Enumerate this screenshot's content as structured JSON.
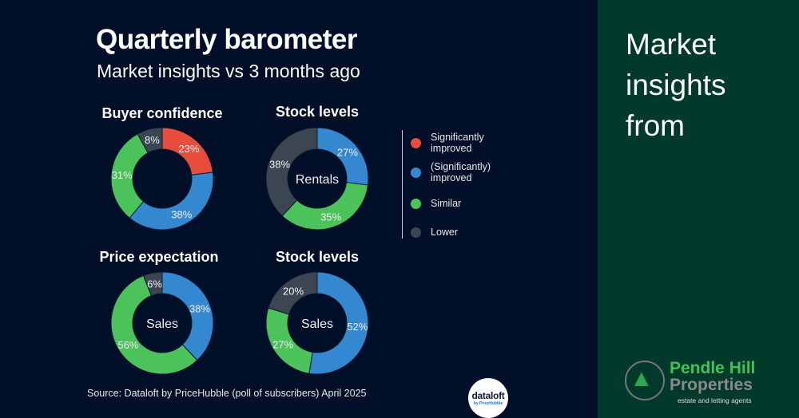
{
  "header": {
    "title": "Quarterly barometer",
    "subtitle": "Market insights vs 3 months ago"
  },
  "colors": {
    "significantly_improved": "#e74c3c",
    "improved": "#3388d0",
    "similar": "#4cc25a",
    "lower": "#3b4651",
    "background": "#010f29",
    "panel": "#013a2b"
  },
  "legend": [
    {
      "label": "Significantly improved",
      "color": "#e74c3c"
    },
    {
      "label": "(Significantly) improved",
      "color": "#3388d0"
    },
    {
      "label": "Similar",
      "color": "#4cc25a"
    },
    {
      "label": "Lower",
      "color": "#3b4651"
    }
  ],
  "chart_data": [
    {
      "type": "pie",
      "title": "Buyer confidence",
      "center_label": "",
      "categories": [
        "Significantly improved",
        "(Significantly) improved",
        "Similar",
        "Lower"
      ],
      "values": [
        23,
        38,
        31,
        8
      ],
      "colors": [
        "#e74c3c",
        "#3388d0",
        "#4cc25a",
        "#3b4651"
      ],
      "labels": [
        "23%",
        "38%",
        "31%",
        "8%"
      ]
    },
    {
      "type": "pie",
      "title": "Stock levels",
      "center_label": "Rentals",
      "categories": [
        "(Significantly) improved",
        "Similar",
        "Lower"
      ],
      "values": [
        27,
        35,
        38
      ],
      "colors": [
        "#3388d0",
        "#4cc25a",
        "#3b4651"
      ],
      "labels": [
        "27%",
        "35%",
        "38%"
      ]
    },
    {
      "type": "pie",
      "title": "Price expectation",
      "center_label": "Sales",
      "categories": [
        "(Significantly) improved",
        "Similar",
        "Lower"
      ],
      "values": [
        38,
        56,
        6
      ],
      "colors": [
        "#3388d0",
        "#4cc25a",
        "#3b4651"
      ],
      "labels": [
        "38%",
        "56%",
        "6%"
      ]
    },
    {
      "type": "pie",
      "title": "Stock levels",
      "center_label": "Sales",
      "categories": [
        "(Significantly) improved",
        "Similar",
        "Lower"
      ],
      "values": [
        52,
        27,
        20
      ],
      "colors": [
        "#3388d0",
        "#4cc25a",
        "#3b4651"
      ],
      "labels": [
        "52%",
        "27%",
        "20%"
      ]
    }
  ],
  "source": "Source: Dataloft by PriceHubble (poll of subscribers) April 2025",
  "dataloft_logo": {
    "name": "dataloft",
    "sub": "by PriceHubble"
  },
  "side_panel": {
    "text": "Market insights from",
    "logo": {
      "line1": "Pendle Hill",
      "line2": "Properties",
      "tagline": "estate and letting agents"
    }
  }
}
